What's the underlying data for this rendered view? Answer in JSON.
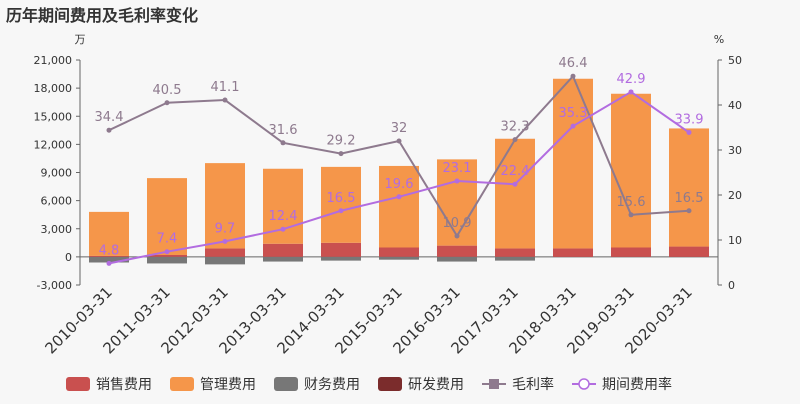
{
  "chart_data": {
    "type": "bar",
    "title": "历年期间费用及毛利率变化",
    "left_unit": "万",
    "right_unit": "%",
    "left_ticks": [
      "21,000",
      "18,000",
      "15,000",
      "12,000",
      "9,000",
      "6,000",
      "3,000",
      "0",
      "-3,000"
    ],
    "right_ticks": [
      "50",
      "40",
      "30",
      "20",
      "10",
      "0"
    ],
    "ylim_left": [
      -3000,
      21000
    ],
    "ylim_right": [
      0,
      50
    ],
    "categories": [
      "2010-03-31",
      "2011-03-31",
      "2012-03-31",
      "2013-03-31",
      "2014-03-31",
      "2015-03-31",
      "2016-03-31",
      "2017-03-31",
      "2018-03-31",
      "2019-03-31",
      "2020-03-31"
    ],
    "bar_series": [
      {
        "name": "销售费用",
        "color": "#c9504f",
        "values": [
          100,
          200,
          900,
          1400,
          1500,
          1000,
          1200,
          900,
          900,
          1000,
          1100
        ]
      },
      {
        "name": "管理费用",
        "color": "#f5964a",
        "values": [
          4700,
          8200,
          9100,
          8000,
          8100,
          8700,
          9200,
          11700,
          18100,
          16400,
          12600
        ]
      },
      {
        "name": "财务费用",
        "color": "#777777",
        "values": [
          -600,
          -700,
          -800,
          -500,
          -400,
          -300,
          -500,
          -400,
          0,
          0,
          0
        ]
      },
      {
        "name": "研发费用",
        "color": "#7b2c2c",
        "values": [
          0,
          0,
          0,
          0,
          0,
          0,
          0,
          0,
          0,
          0,
          0
        ]
      }
    ],
    "line_series": [
      {
        "name": "毛利率",
        "color": "#8e7a8e",
        "values": [
          34.4,
          40.5,
          41.1,
          31.6,
          29.2,
          32,
          10.9,
          32.3,
          46.4,
          15.6,
          16.5
        ],
        "labels": [
          "34.4",
          "40.5",
          "41.1",
          "31.6",
          "29.2",
          "32",
          "10.9",
          "32.3",
          "46.4",
          "15.6",
          "16.5"
        ]
      },
      {
        "name": "期间费用率",
        "color": "#b26ce0",
        "values": [
          4.8,
          7.4,
          9.7,
          12.4,
          16.5,
          19.6,
          23.1,
          22.4,
          35.3,
          42.9,
          33.9
        ],
        "labels": [
          "4.8",
          "7.4",
          "9.7",
          "12.4",
          "16.5",
          "19.6",
          "23.1",
          "22.4",
          "35.3",
          "42.9",
          "33.9"
        ]
      }
    ],
    "legend_position": "bottom"
  }
}
